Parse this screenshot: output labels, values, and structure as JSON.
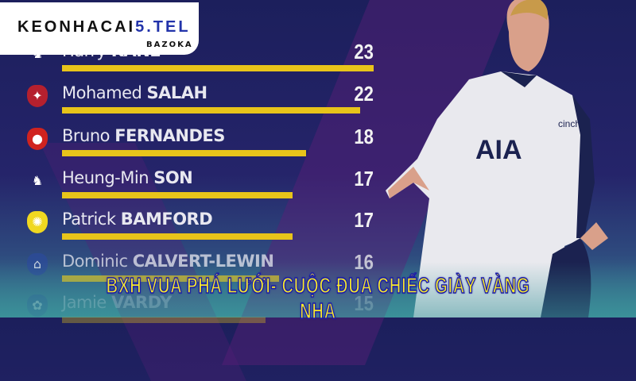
{
  "brand": {
    "name_part1": "KEONHACAI",
    "name_part2": "5.TEL",
    "tagline": "BAZOKA"
  },
  "leaderboard": [
    {
      "first": "Harry",
      "last": "KANE",
      "goals": 23,
      "club_icon": "tottenham-crest",
      "fill": 1.0
    },
    {
      "first": "Mohamed",
      "last": "SALAH",
      "goals": 22,
      "club_icon": "liverpool-crest",
      "fill": 0.957
    },
    {
      "first": "Bruno",
      "last": "FERNANDES",
      "goals": 18,
      "club_icon": "man-utd-crest",
      "fill": 0.783
    },
    {
      "first": "Heung-Min",
      "last": "SON",
      "goals": 17,
      "club_icon": "tottenham-crest",
      "fill": 0.739
    },
    {
      "first": "Patrick",
      "last": "BAMFORD",
      "goals": 17,
      "club_icon": "leeds-crest",
      "fill": 0.739
    },
    {
      "first": "Dominic",
      "last": "CALVERT-LEWIN",
      "goals": 16,
      "club_icon": "everton-crest",
      "fill": 0.696
    },
    {
      "first": "Jamie",
      "last": "VARDY",
      "goals": 15,
      "club_icon": "leicester-crest",
      "fill": 0.652
    }
  ],
  "headline": "BXH VUA PHÁ LƯỚI- CUỘC ĐUA CHIẾC GIÀY VÀNG NHA",
  "jersey": {
    "sponsor": "AIA",
    "sleeve": "cinch"
  },
  "colors": {
    "background": "#1c1f5c",
    "bar": "#e8c41a",
    "headline_fill": "#f6ea2a",
    "headline_stroke": "#1a1aa8"
  }
}
